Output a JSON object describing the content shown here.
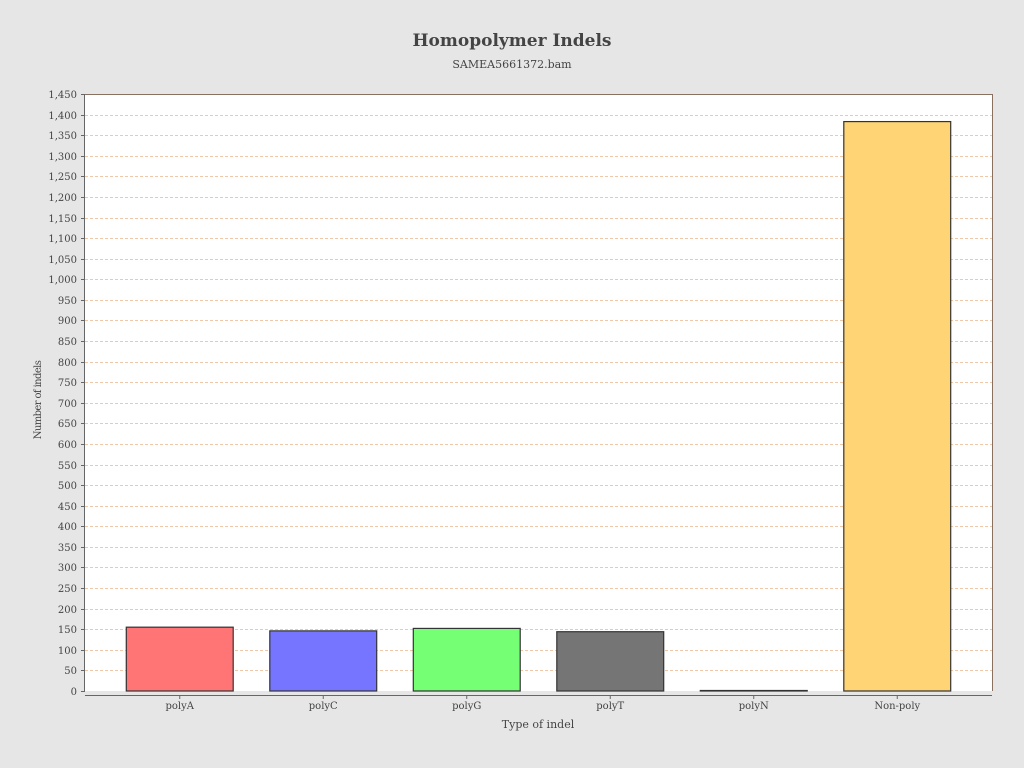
{
  "chart_data": {
    "type": "bar",
    "title": "Homopolymer Indels",
    "subtitle": "SAMEA5661372.bam",
    "xlabel": "Type of indel",
    "ylabel": "Number of indels",
    "categories": [
      "polyA",
      "polyC",
      "polyG",
      "polyT",
      "polyN",
      "Non-poly"
    ],
    "values": [
      155,
      146,
      152,
      144,
      1,
      1383
    ],
    "colors": [
      "#ff7575",
      "#7575ff",
      "#75ff75",
      "#757575",
      "#757575",
      "#ffd475"
    ],
    "ylim": [
      0,
      1450
    ],
    "ytick_step": 50,
    "grid": true,
    "legend": "none"
  }
}
